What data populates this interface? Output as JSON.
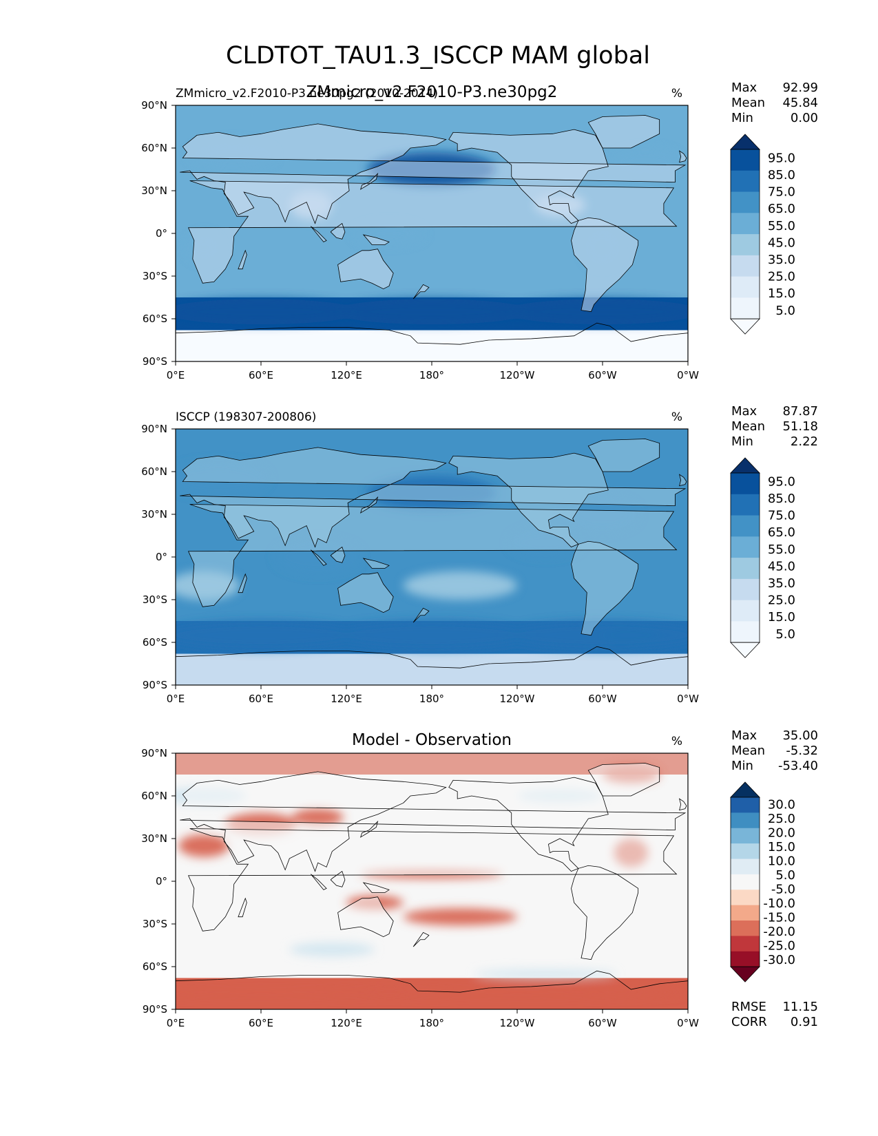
{
  "figure": {
    "title": "CLDTOT_TAU1.3_ISCCP MAM global"
  },
  "chart_data": [
    {
      "type": "heatmap",
      "title": "ZMmicro_v2.F2010-P3.ne30pg2",
      "left_title": "ZMmicro_v2.F2010-P3.ne30pg2 (2010-2014)",
      "units": "%",
      "stats": [
        {
          "label": "Max",
          "value": "92.99"
        },
        {
          "label": "Mean",
          "value": "45.84"
        },
        {
          "label": "Min",
          "value": "0.00"
        }
      ],
      "x_ticks": [
        "0°E",
        "60°E",
        "120°E",
        "180°",
        "120°W",
        "60°W",
        "0°W"
      ],
      "y_ticks": [
        "90°N",
        "60°N",
        "30°N",
        "0°",
        "30°S",
        "60°S",
        "90°S"
      ],
      "xlim": [
        0,
        360
      ],
      "ylim": [
        -90,
        90
      ],
      "colorbar": {
        "levels": [
          "95.0",
          "85.0",
          "75.0",
          "65.0",
          "55.0",
          "45.0",
          "35.0",
          "25.0",
          "15.0",
          "5.0"
        ],
        "colors": [
          "#08306b",
          "#08519c",
          "#2171b5",
          "#4292c6",
          "#6baed6",
          "#9ecae1",
          "#c6dbef",
          "#deebf7",
          "#eef5fc",
          "#f7fbff"
        ]
      },
      "colors": {
        "land": "#c6dbef",
        "ocean": "#6baed6",
        "storm": "#08519c",
        "polar": "#f7fbff"
      }
    },
    {
      "type": "heatmap",
      "title": "",
      "left_title": "ISCCP (198307-200806)",
      "units": "%",
      "stats": [
        {
          "label": "Max",
          "value": "87.87"
        },
        {
          "label": "Mean",
          "value": "51.18"
        },
        {
          "label": "Min",
          "value": "2.22"
        }
      ],
      "x_ticks": [
        "0°E",
        "60°E",
        "120°E",
        "180°",
        "120°W",
        "60°W",
        "0°W"
      ],
      "y_ticks": [
        "90°N",
        "60°N",
        "30°N",
        "0°",
        "30°S",
        "60°S",
        "90°S"
      ],
      "xlim": [
        0,
        360
      ],
      "ylim": [
        -90,
        90
      ],
      "colorbar": {
        "levels": [
          "95.0",
          "85.0",
          "75.0",
          "65.0",
          "55.0",
          "45.0",
          "35.0",
          "25.0",
          "15.0",
          "5.0"
        ],
        "colors": [
          "#08306b",
          "#08519c",
          "#2171b5",
          "#4292c6",
          "#6baed6",
          "#9ecae1",
          "#c6dbef",
          "#deebf7",
          "#eef5fc",
          "#f7fbff"
        ]
      },
      "colors": {
        "land": "#9ecae1",
        "ocean": "#4292c6",
        "storm": "#2171b5",
        "polar": "#c6dbef"
      }
    },
    {
      "type": "heatmap",
      "title": "Model - Observation",
      "left_title": "",
      "units": "%",
      "stats": [
        {
          "label": "Max",
          "value": "35.00"
        },
        {
          "label": "Mean",
          "value": "-5.32"
        },
        {
          "label": "Min",
          "value": "-53.40"
        }
      ],
      "x_ticks": [
        "0°E",
        "60°E",
        "120°E",
        "180°",
        "120°W",
        "60°W",
        "0°W"
      ],
      "y_ticks": [
        "90°N",
        "60°N",
        "30°N",
        "0°",
        "30°S",
        "60°S",
        "90°S"
      ],
      "xlim": [
        0,
        360
      ],
      "ylim": [
        -90,
        90
      ],
      "colorbar": {
        "levels": [
          "30.0",
          "25.0",
          "20.0",
          "15.0",
          "10.0",
          "5.0",
          "-5.0",
          "-10.0",
          "-15.0",
          "-20.0",
          "-25.0",
          "-30.0"
        ],
        "colors": [
          "#053061",
          "#1f5fa8",
          "#3f8ec1",
          "#79b5d8",
          "#b4d6e8",
          "#e0ecf4",
          "#f7f7f7",
          "#fbd9c5",
          "#f3a98a",
          "#dc6f5a",
          "#c0373b",
          "#970f27",
          "#67001f"
        ]
      },
      "colors": {
        "land": "#f7f7f7",
        "ocean": "#f7f7f7",
        "storm": "#d1e5f0",
        "polar": "#d6604d"
      },
      "error_stats": [
        {
          "label": "RMSE",
          "value": "11.15"
        },
        {
          "label": "CORR",
          "value": "0.91"
        }
      ]
    }
  ]
}
